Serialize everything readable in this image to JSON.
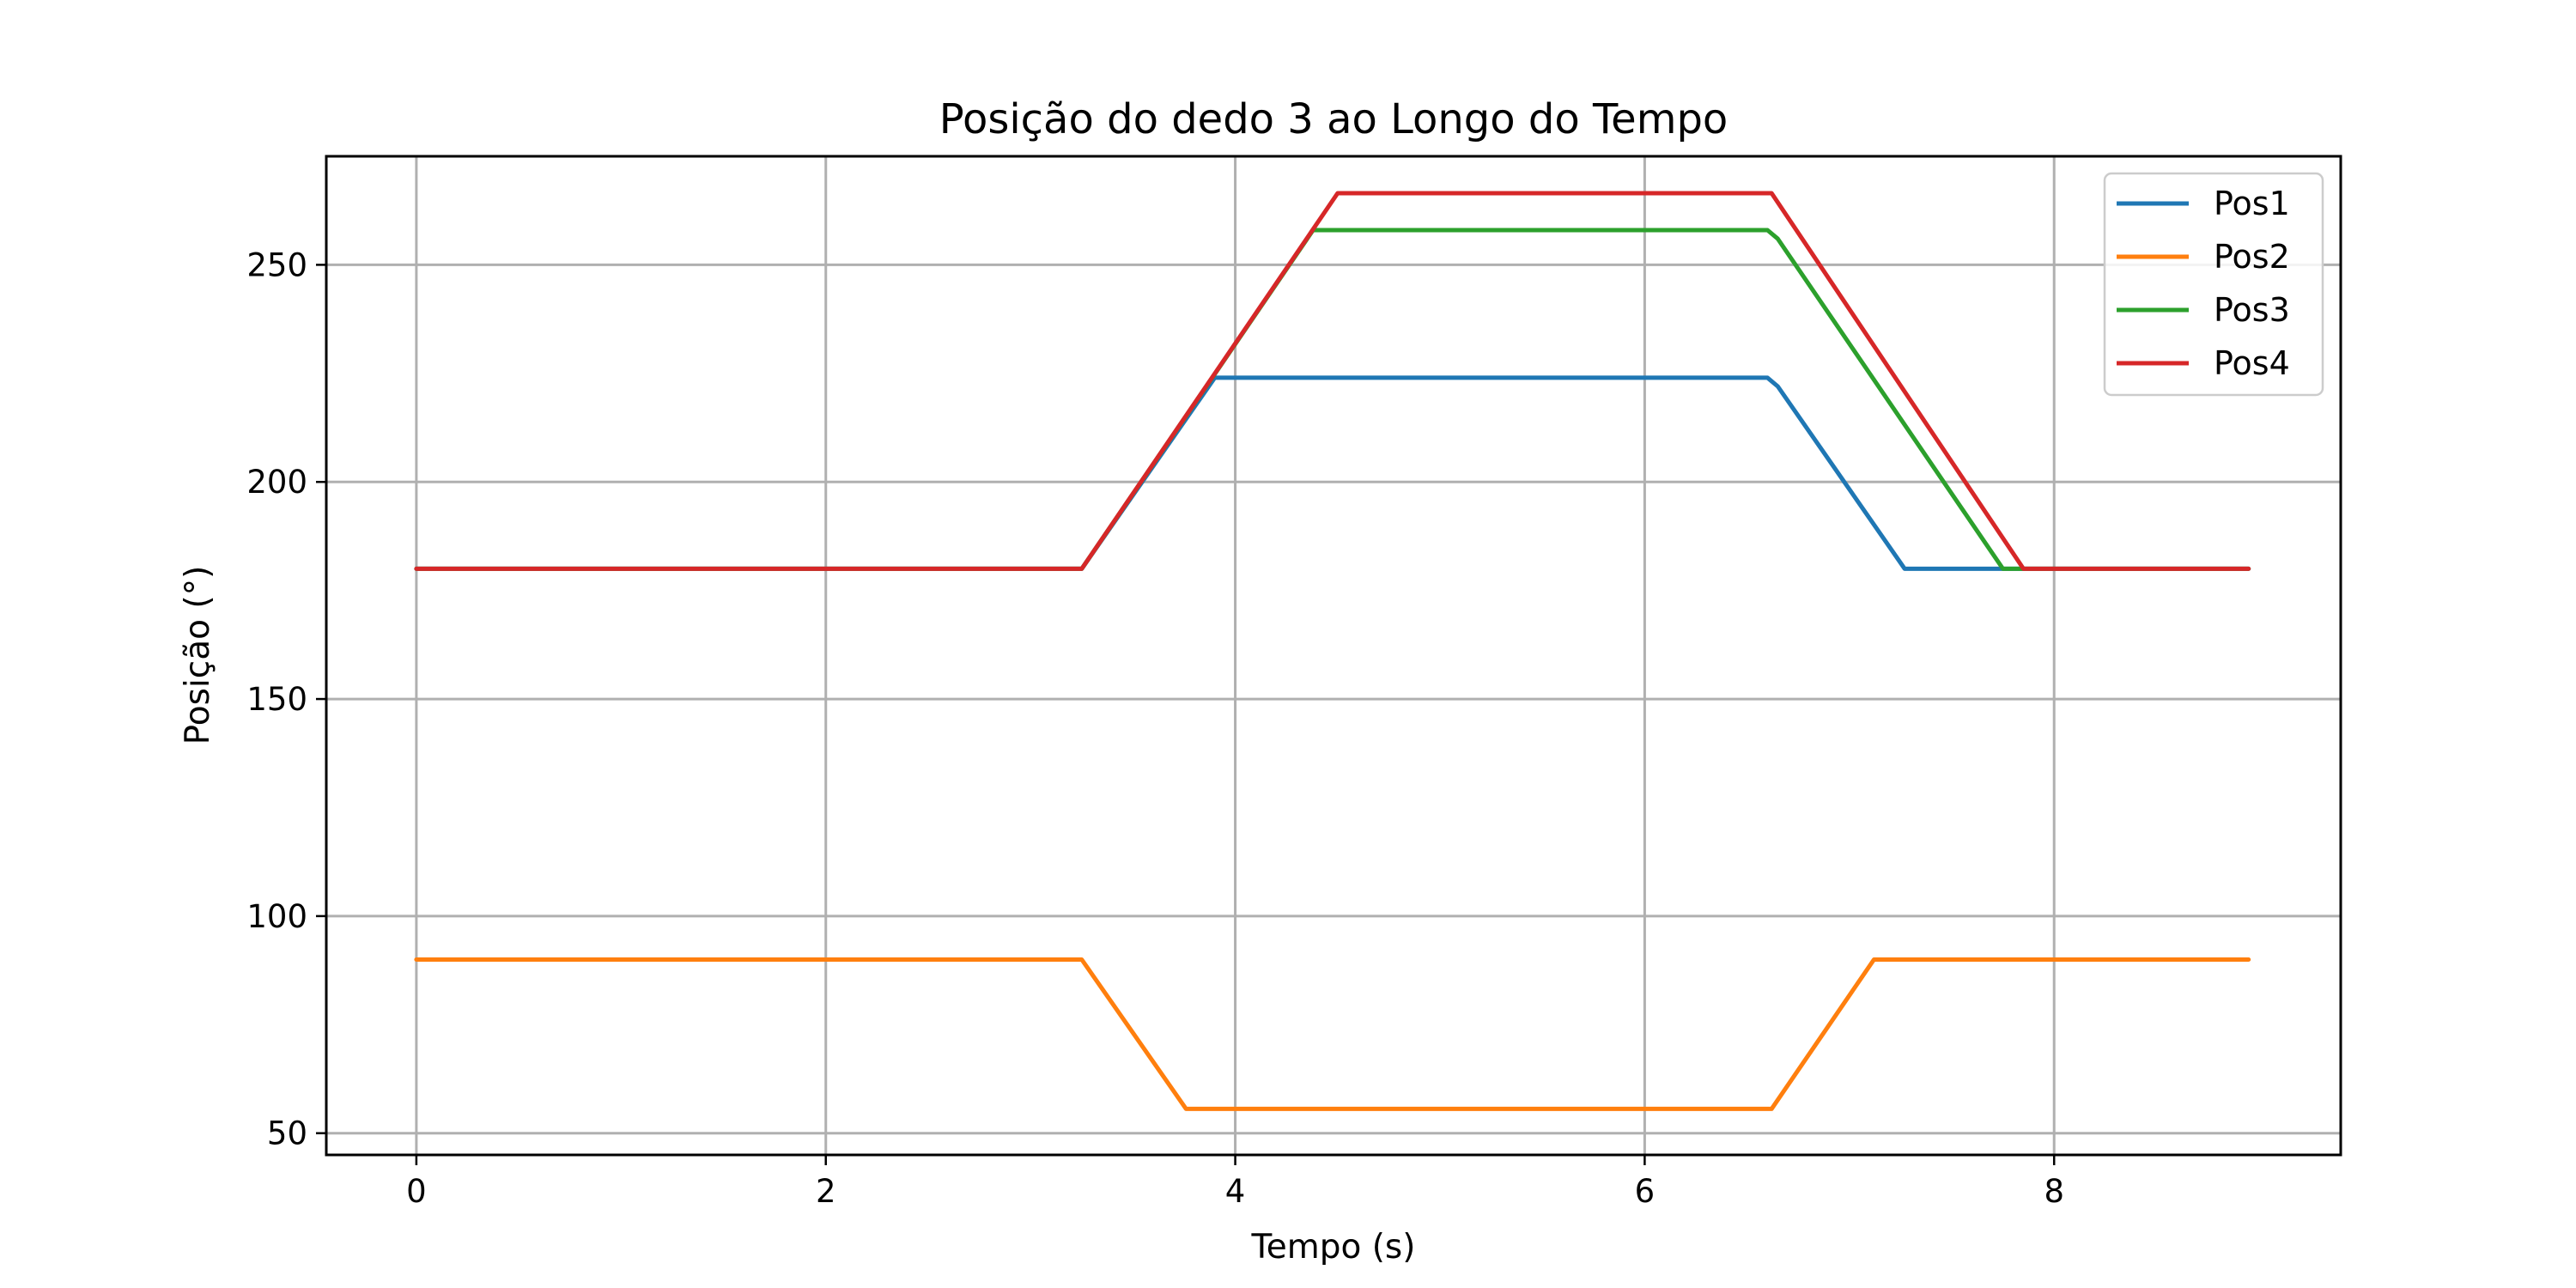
{
  "chart_data": {
    "type": "line",
    "title": "Posição do dedo 3 ao Longo do Tempo",
    "xlabel": "Tempo (s)",
    "ylabel": "Posição (°)",
    "xlim": [
      -0.44,
      9.4
    ],
    "ylim": [
      45,
      275
    ],
    "xticks": [
      0,
      2,
      4,
      6,
      8
    ],
    "yticks": [
      50,
      100,
      150,
      200,
      250
    ],
    "grid": true,
    "legend_position": "top-right",
    "series": [
      {
        "name": "Pos1",
        "color": "#1f77b4",
        "points": [
          [
            0,
            180
          ],
          [
            3.25,
            180
          ],
          [
            3.9,
            224
          ],
          [
            6.6,
            224
          ],
          [
            6.65,
            222
          ],
          [
            7.27,
            180
          ],
          [
            8.95,
            180
          ]
        ]
      },
      {
        "name": "Pos2",
        "color": "#ff7f0e",
        "points": [
          [
            0,
            90
          ],
          [
            3.25,
            90
          ],
          [
            3.76,
            55.6
          ],
          [
            6.62,
            55.6
          ],
          [
            7.12,
            90
          ],
          [
            8.95,
            90
          ]
        ]
      },
      {
        "name": "Pos3",
        "color": "#2ca02c",
        "points": [
          [
            0,
            180
          ],
          [
            3.25,
            180
          ],
          [
            4.38,
            258
          ],
          [
            6.6,
            258
          ],
          [
            6.65,
            256
          ],
          [
            7.75,
            180
          ],
          [
            8.95,
            180
          ]
        ]
      },
      {
        "name": "Pos4",
        "color": "#d62728",
        "points": [
          [
            0,
            180
          ],
          [
            3.25,
            180
          ],
          [
            4.5,
            266.5
          ],
          [
            6.62,
            266.5
          ],
          [
            7.85,
            180
          ],
          [
            8.95,
            180
          ]
        ]
      }
    ]
  }
}
